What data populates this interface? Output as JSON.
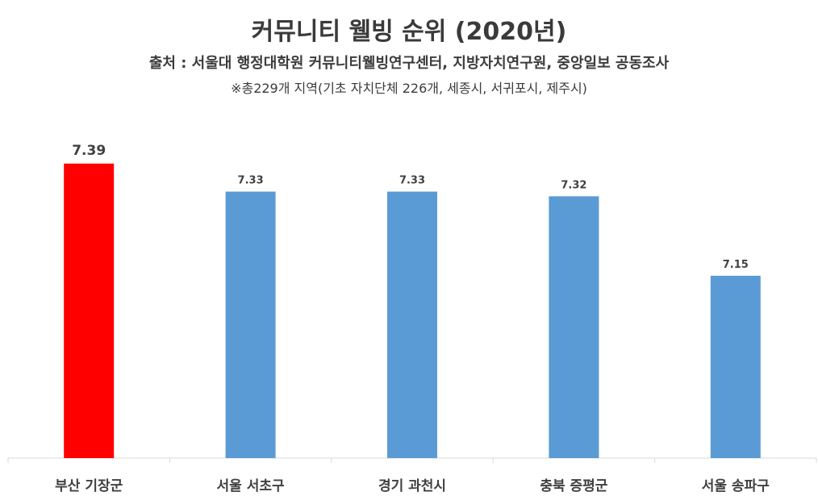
{
  "title": "커뮤니티 웰빙 순위 (2020년)",
  "subtitle": "출처 : 서울대 행정대학원 커뮤니티웰빙연구센터, 지방자치연구원, 중앙일보 공동조사",
  "note": "※총229개 지역(기초 자치단체 226개, 세종시, 서귀포시, 제주시)",
  "chart_data": {
    "type": "bar",
    "title": "커뮤니티 웰빙 순위 (2020년)",
    "categories": [
      "부산 기장군",
      "서울 서초구",
      "경기 과천시",
      "충북 증평군",
      "서울 송파구"
    ],
    "values": [
      7.39,
      7.33,
      7.33,
      7.32,
      7.15
    ],
    "value_labels": [
      "7.39",
      "7.33",
      "7.33",
      "7.32",
      "7.15"
    ],
    "colors": [
      "#ff0000",
      "#5b9bd5",
      "#5b9bd5",
      "#5b9bd5",
      "#5b9bd5"
    ],
    "xlabel": "",
    "ylabel": "",
    "ylim": [
      6.76,
      7.4
    ],
    "grid": false,
    "legend": "none"
  }
}
